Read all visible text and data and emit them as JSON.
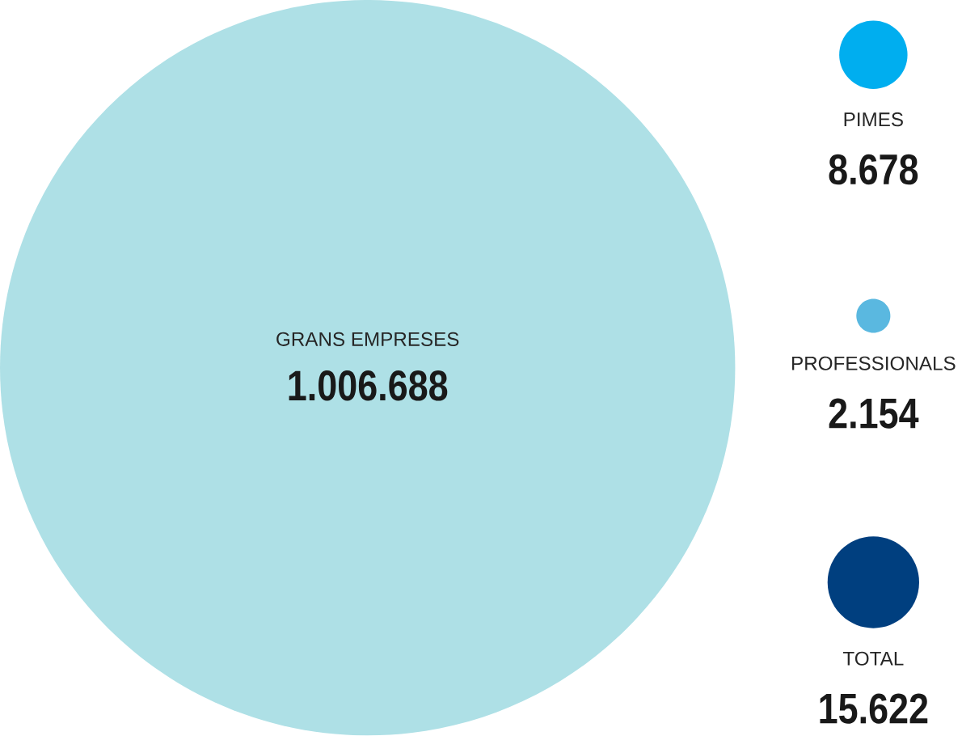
{
  "chart_data": {
    "type": "other",
    "categories": [
      "GRANS EMPRESES",
      "PIMES",
      "PROFESSIONALS",
      "TOTAL"
    ],
    "values": [
      1006688,
      8678,
      2154,
      15622
    ],
    "value_labels": [
      "1.006.688",
      "8.678",
      "2.154",
      "15.622"
    ],
    "colors": [
      "#aee0e6",
      "#00aeef",
      "#5ab8e0",
      "#003f7f"
    ]
  }
}
